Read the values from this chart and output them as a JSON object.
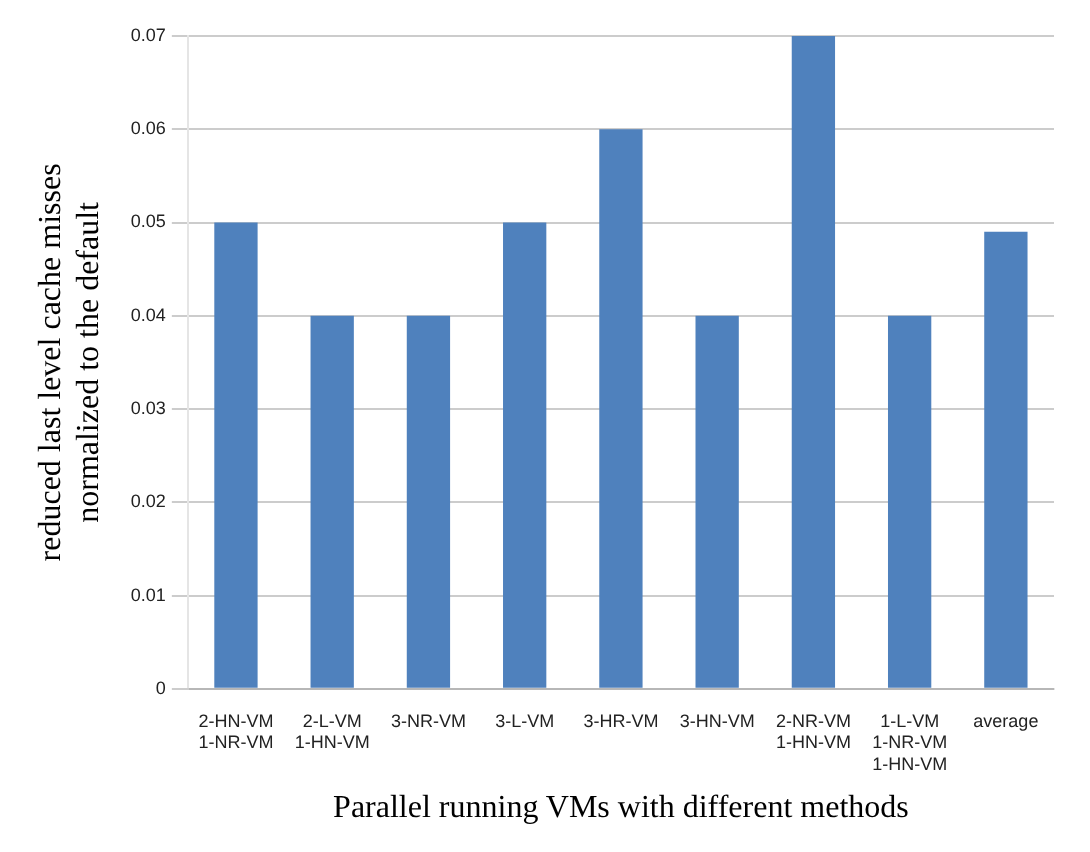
{
  "chart_data": {
    "type": "bar",
    "xlabel": "Parallel running VMs with different methods",
    "ylabel": "reduced last level cache misses normalized to the default",
    "categories": [
      "2-HN-VM 1-NR-VM",
      "2-L-VM 1-HN-VM",
      "3-NR-VM",
      "3-L-VM",
      "3-HR-VM",
      "3-HN-VM",
      "2-NR-VM 1-HN-VM",
      "1-L-VM 1-NR-VM 1-HN-VM",
      "average"
    ],
    "values": [
      0.05,
      0.04,
      0.04,
      0.05,
      0.06,
      0.04,
      0.07,
      0.04,
      0.049
    ],
    "color": "#4f81bd",
    "ylim": [
      0,
      0.07
    ],
    "yticks": [
      0,
      0.01,
      0.02,
      0.03,
      0.04,
      0.05,
      0.06,
      0.07
    ],
    "grid": "y"
  }
}
